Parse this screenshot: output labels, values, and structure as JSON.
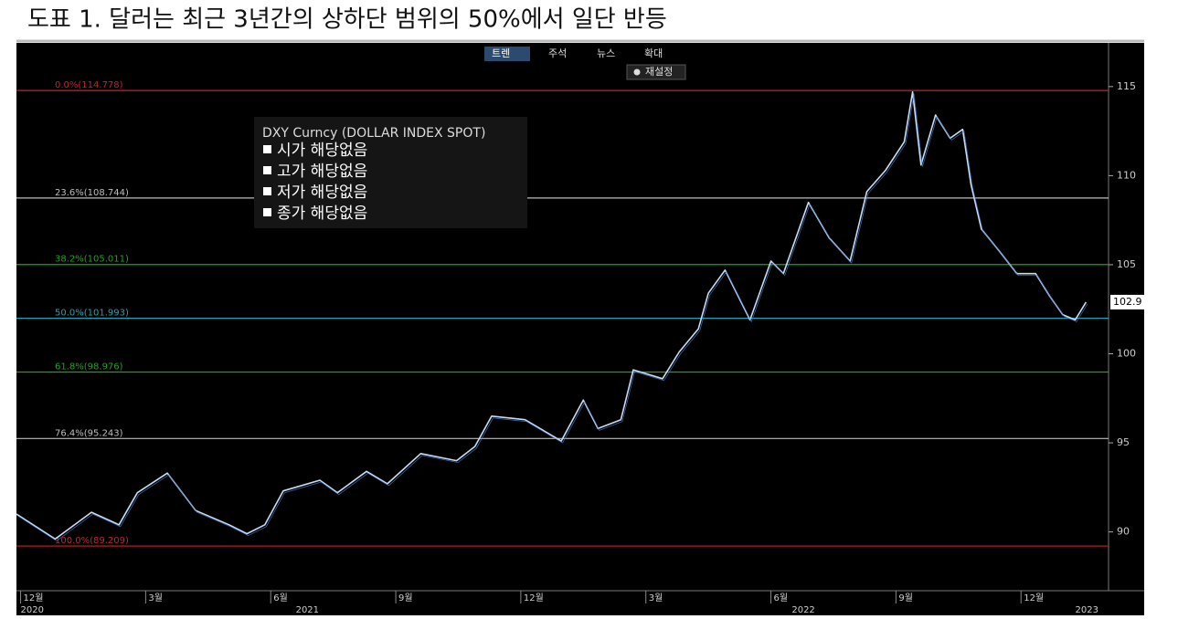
{
  "chart_data": {
    "type": "line",
    "title": "도표 1. 달러는 최근 3년간의 상하단 범위의 50%에서 일단 반등",
    "legend_title": "DXY Curncy (DOLLAR INDEX SPOT)",
    "legend_items": [
      "시가 해당없음",
      "고가 해당없음",
      "저가 해당없음",
      "종가 해당없음"
    ],
    "x": [
      -0.1,
      0.83,
      1.7,
      2.36,
      2.8,
      3.52,
      4.2,
      5.0,
      5.43,
      5.86,
      6.3,
      7.18,
      7.6,
      8.3,
      8.8,
      9.6,
      10.46,
      10.9,
      11.3,
      12.1,
      12.97,
      13.5,
      13.85,
      14.4,
      14.7,
      15.4,
      15.8,
      16.26,
      16.5,
      16.9,
      17.5,
      18.0,
      18.3,
      18.9,
      19.4,
      19.9,
      20.3,
      20.75,
      21.2,
      21.4,
      21.6,
      21.95,
      22.3,
      22.6,
      22.8,
      23.05,
      23.5,
      23.9,
      24.35,
      24.7,
      25.0,
      25.3,
      25.56
    ],
    "series": [
      {
        "name": "DXY",
        "color": "#c9dcf2",
        "values": [
          91.0,
          89.6,
          91.1,
          90.4,
          92.2,
          93.3,
          91.2,
          90.4,
          89.9,
          90.4,
          92.3,
          92.9,
          92.2,
          93.4,
          92.7,
          94.4,
          94.0,
          94.8,
          96.5,
          96.3,
          95.1,
          97.4,
          95.8,
          96.3,
          99.1,
          98.6,
          100.1,
          101.4,
          103.4,
          104.7,
          101.9,
          105.2,
          104.5,
          108.5,
          106.5,
          105.2,
          109.1,
          110.3,
          111.9,
          114.7,
          110.6,
          113.4,
          112.1,
          112.6,
          109.5,
          107.0,
          105.7,
          104.5,
          104.5,
          103.2,
          102.2,
          101.9,
          102.9
        ]
      }
    ],
    "last_value": 102.9,
    "xlim": [
      -0.1,
      26.1
    ],
    "xticks": [
      {
        "value": 0,
        "label": "12월"
      },
      {
        "value": 3,
        "label": "3월"
      },
      {
        "value": 6,
        "label": "6월"
      },
      {
        "value": 9,
        "label": "9월"
      },
      {
        "value": 12,
        "label": "12월"
      },
      {
        "value": 15,
        "label": "3월"
      },
      {
        "value": 18,
        "label": "6월"
      },
      {
        "value": 21,
        "label": "9월"
      },
      {
        "value": 24,
        "label": "12월"
      }
    ],
    "year_labels": [
      {
        "value": 0,
        "label": "2020"
      },
      {
        "value": 6.6,
        "label": "2021"
      },
      {
        "value": 18.5,
        "label": "2022"
      },
      {
        "value": 25.3,
        "label": "2023"
      }
    ],
    "ylim": [
      86.7,
      117.4
    ],
    "yticks": [
      90,
      95,
      100,
      105,
      110,
      115
    ],
    "fib_levels": [
      {
        "value": 114.778,
        "label": "0.0%(114.778)",
        "color": "#c0262b"
      },
      {
        "value": 108.744,
        "label": "23.6%(108.744)",
        "color": "#bdbdbd"
      },
      {
        "value": 105.011,
        "label": "38.2%(105.011)",
        "color": "#1fa31f"
      },
      {
        "value": 101.993,
        "label": "50.0%(101.993)",
        "color": "#2a9fb0"
      },
      {
        "value": 98.976,
        "label": "61.8%(98.976)",
        "color": "#1fa31f"
      },
      {
        "value": 95.243,
        "label": "76.4%(95.243)",
        "color": "#bdbdbd"
      },
      {
        "value": 89.209,
        "label": "100.0%(89.209)",
        "color": "#c0262b"
      }
    ]
  },
  "toolbar": {
    "buttons": [
      "트렌",
      "주석",
      "뉴스",
      "확대"
    ],
    "reset": "재설정"
  }
}
